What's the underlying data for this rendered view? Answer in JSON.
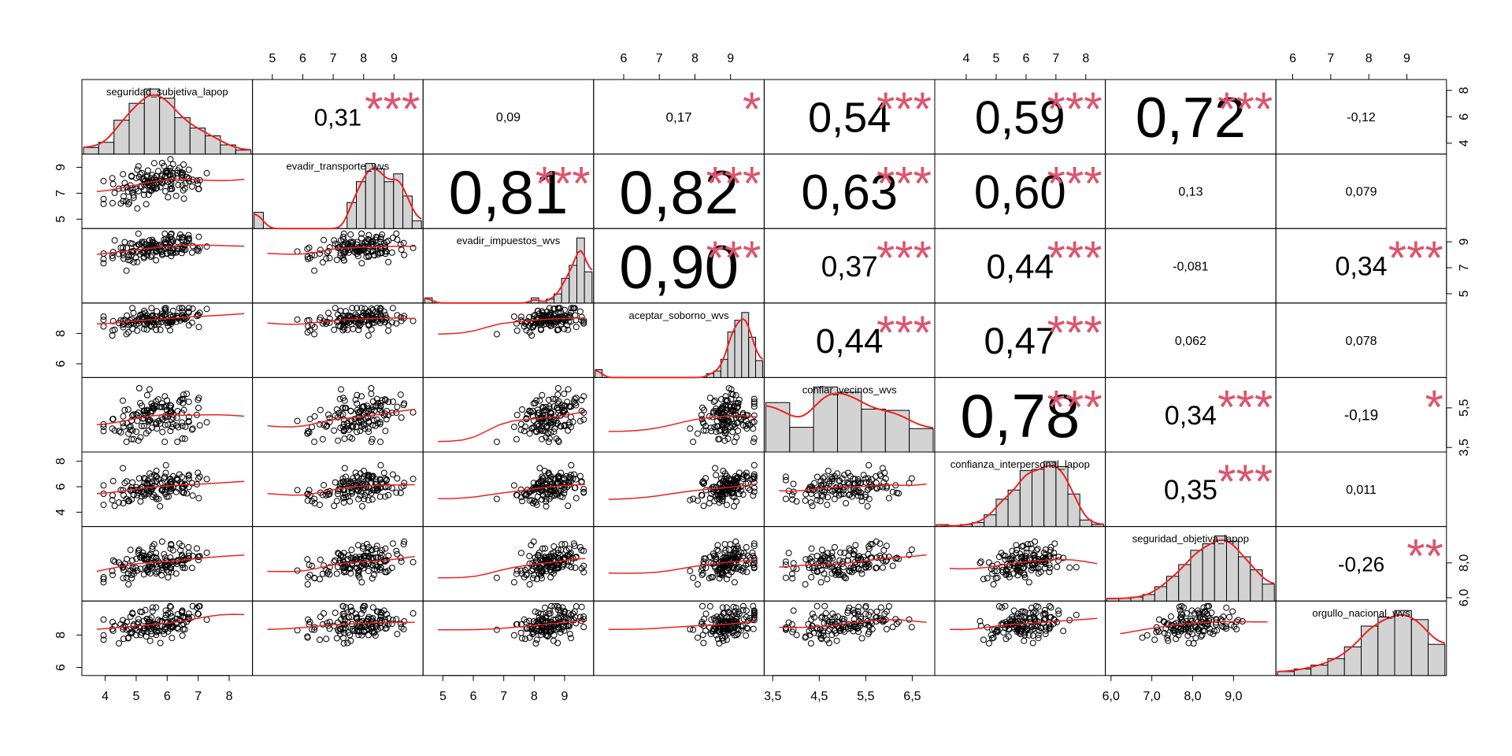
{
  "chart_data": {
    "type": "scatter-matrix",
    "title": "",
    "variables": [
      "seguridad_subjetiva_lapop",
      "evadir_transporte_wvs",
      "evadir_impuestos_wvs",
      "aceptar_soborno_wvs",
      "confiar_vecinos_wvs",
      "confianza_interpersonal_lapop",
      "seguridad_objetiva_lapop",
      "orgullo_nacional_wvs"
    ],
    "axis_ranges": [
      [
        3.3,
        8.7
      ],
      [
        4.4,
        9.9
      ],
      [
        4.4,
        9.9
      ],
      [
        5.2,
        9.9
      ],
      [
        3.35,
        6.95
      ],
      [
        3.0,
        8.6
      ],
      [
        5.9,
        10.0
      ],
      [
        5.6,
        10.0
      ]
    ],
    "ticks": [
      {
        "values": [
          4,
          5,
          6,
          7,
          8
        ],
        "labels": [
          "4",
          "5",
          "6",
          "7",
          "8"
        ]
      },
      {
        "values": [
          5,
          6,
          7,
          8,
          9
        ],
        "labels": [
          "5",
          "6",
          "7",
          "8",
          "9"
        ]
      },
      {
        "values": [
          5,
          6,
          7,
          8,
          9
        ],
        "labels": [
          "5",
          "6",
          "7",
          "8",
          "9"
        ]
      },
      {
        "values": [
          6,
          7,
          8,
          9
        ],
        "labels": [
          "6",
          "7",
          "8",
          "9"
        ]
      },
      {
        "values": [
          3.5,
          4.5,
          5.5,
          6.5
        ],
        "labels": [
          "3,5",
          "4,5",
          "5,5",
          "6,5"
        ]
      },
      {
        "values": [
          4,
          5,
          6,
          7,
          8
        ],
        "labels": [
          "4",
          "5",
          "6",
          "7",
          "8"
        ]
      },
      {
        "values": [
          6.0,
          7.0,
          8.0,
          9.0
        ],
        "labels": [
          "6,0",
          "7,0",
          "8,0",
          "9,0"
        ]
      },
      {
        "values": [
          6,
          7,
          8,
          9
        ],
        "labels": [
          "6",
          "7",
          "8",
          "9"
        ]
      }
    ],
    "left_axis_ticks": [
      null,
      {
        "values": [
          5,
          7,
          9
        ],
        "labels": [
          "5",
          "7",
          "9"
        ]
      },
      null,
      {
        "values": [
          6,
          8
        ],
        "labels": [
          "6",
          "8"
        ]
      },
      null,
      {
        "values": [
          4,
          6,
          8
        ],
        "labels": [
          "4",
          "6",
          "8"
        ]
      },
      null,
      {
        "values": [
          6,
          8
        ],
        "labels": [
          "6",
          "8"
        ]
      }
    ],
    "right_axis_ticks": [
      {
        "values": [
          4,
          6,
          8
        ],
        "labels": [
          "4",
          "6",
          "8"
        ]
      },
      null,
      {
        "values": [
          5,
          7,
          9
        ],
        "labels": [
          "5",
          "7",
          "9"
        ]
      },
      null,
      {
        "values": [
          3.5,
          5.5
        ],
        "labels": [
          "3,5",
          "5,5"
        ]
      },
      null,
      {
        "values": [
          6.0,
          8.0
        ],
        "labels": [
          "6,0",
          "8,0"
        ]
      },
      null
    ],
    "correlations": [
      {
        "row": 0,
        "col": 1,
        "label": "0,31",
        "stars": "***"
      },
      {
        "row": 0,
        "col": 2,
        "label": "0,09",
        "stars": ""
      },
      {
        "row": 0,
        "col": 3,
        "label": "0,17",
        "stars": "*"
      },
      {
        "row": 0,
        "col": 4,
        "label": "0,54",
        "stars": "***"
      },
      {
        "row": 0,
        "col": 5,
        "label": "0,59",
        "stars": "***"
      },
      {
        "row": 0,
        "col": 6,
        "label": "0,72",
        "stars": "***"
      },
      {
        "row": 0,
        "col": 7,
        "label": "-0,12",
        "stars": ""
      },
      {
        "row": 1,
        "col": 2,
        "label": "0,81",
        "stars": "***"
      },
      {
        "row": 1,
        "col": 3,
        "label": "0,82",
        "stars": "***"
      },
      {
        "row": 1,
        "col": 4,
        "label": "0,63",
        "stars": "***"
      },
      {
        "row": 1,
        "col": 5,
        "label": "0,60",
        "stars": "***"
      },
      {
        "row": 1,
        "col": 6,
        "label": "0,13",
        "stars": ""
      },
      {
        "row": 1,
        "col": 7,
        "label": "0,079",
        "stars": ""
      },
      {
        "row": 2,
        "col": 3,
        "label": "0,90",
        "stars": "***"
      },
      {
        "row": 2,
        "col": 4,
        "label": "0,37",
        "stars": "***"
      },
      {
        "row": 2,
        "col": 5,
        "label": "0,44",
        "stars": "***"
      },
      {
        "row": 2,
        "col": 6,
        "label": "-0,081",
        "stars": ""
      },
      {
        "row": 2,
        "col": 7,
        "label": "0,34",
        "stars": "***"
      },
      {
        "row": 3,
        "col": 4,
        "label": "0,44",
        "stars": "***"
      },
      {
        "row": 3,
        "col": 5,
        "label": "0,47",
        "stars": "***"
      },
      {
        "row": 3,
        "col": 6,
        "label": "0,062",
        "stars": ""
      },
      {
        "row": 3,
        "col": 7,
        "label": "0,078",
        "stars": ""
      },
      {
        "row": 4,
        "col": 5,
        "label": "0,78",
        "stars": "***"
      },
      {
        "row": 4,
        "col": 6,
        "label": "0,34",
        "stars": "***"
      },
      {
        "row": 4,
        "col": 7,
        "label": "-0,19",
        "stars": "*"
      },
      {
        "row": 5,
        "col": 6,
        "label": "0,35",
        "stars": "***"
      },
      {
        "row": 5,
        "col": 7,
        "label": "0,011",
        "stars": ""
      },
      {
        "row": 6,
        "col": 7,
        "label": "-0,26",
        "stars": "**"
      }
    ],
    "histograms": [
      [
        0.1,
        0.18,
        0.52,
        0.78,
        1.0,
        0.86,
        0.56,
        0.4,
        0.28,
        0.14,
        0.06
      ],
      [
        0.25,
        0.0,
        0.0,
        0.0,
        0.0,
        0.0,
        0.0,
        0.0,
        0.0,
        0.0,
        0.4,
        0.72,
        1.0,
        0.92,
        0.72,
        0.84,
        0.5,
        0.12
      ],
      [
        0.08,
        0.0,
        0.0,
        0.0,
        0.0,
        0.0,
        0.0,
        0.0,
        0.0,
        0.0,
        0.0,
        0.0,
        0.0,
        0.0,
        0.08,
        0.0,
        0.06,
        0.14,
        0.38,
        0.58,
        1.0,
        0.48
      ],
      [
        0.12,
        0.0,
        0.0,
        0.0,
        0.0,
        0.0,
        0.0,
        0.0,
        0.0,
        0.0,
        0.0,
        0.0,
        0.0,
        0.0,
        0.0,
        0.0,
        0.06,
        0.1,
        0.28,
        0.7,
        0.88,
        1.0,
        0.62,
        0.26
      ],
      [
        0.76,
        0.38,
        1.0,
        0.92,
        0.66,
        0.64,
        0.36
      ],
      [
        0.03,
        0.0,
        0.03,
        0.06,
        0.18,
        0.42,
        0.56,
        0.86,
        0.88,
        1.0,
        0.92,
        0.5,
        0.1,
        0.03
      ],
      [
        0.04,
        0.04,
        0.06,
        0.1,
        0.22,
        0.38,
        0.56,
        0.78,
        0.88,
        1.0,
        0.92,
        0.68,
        0.48,
        0.26
      ],
      [
        0.06,
        0.1,
        0.16,
        0.26,
        0.44,
        0.76,
        0.9,
        1.0,
        0.86,
        0.48
      ]
    ],
    "colors": {
      "smoother": "#ee2222",
      "stars": "#df536b",
      "histogram_fill": "#d3d3d3",
      "points": "#000000"
    }
  }
}
